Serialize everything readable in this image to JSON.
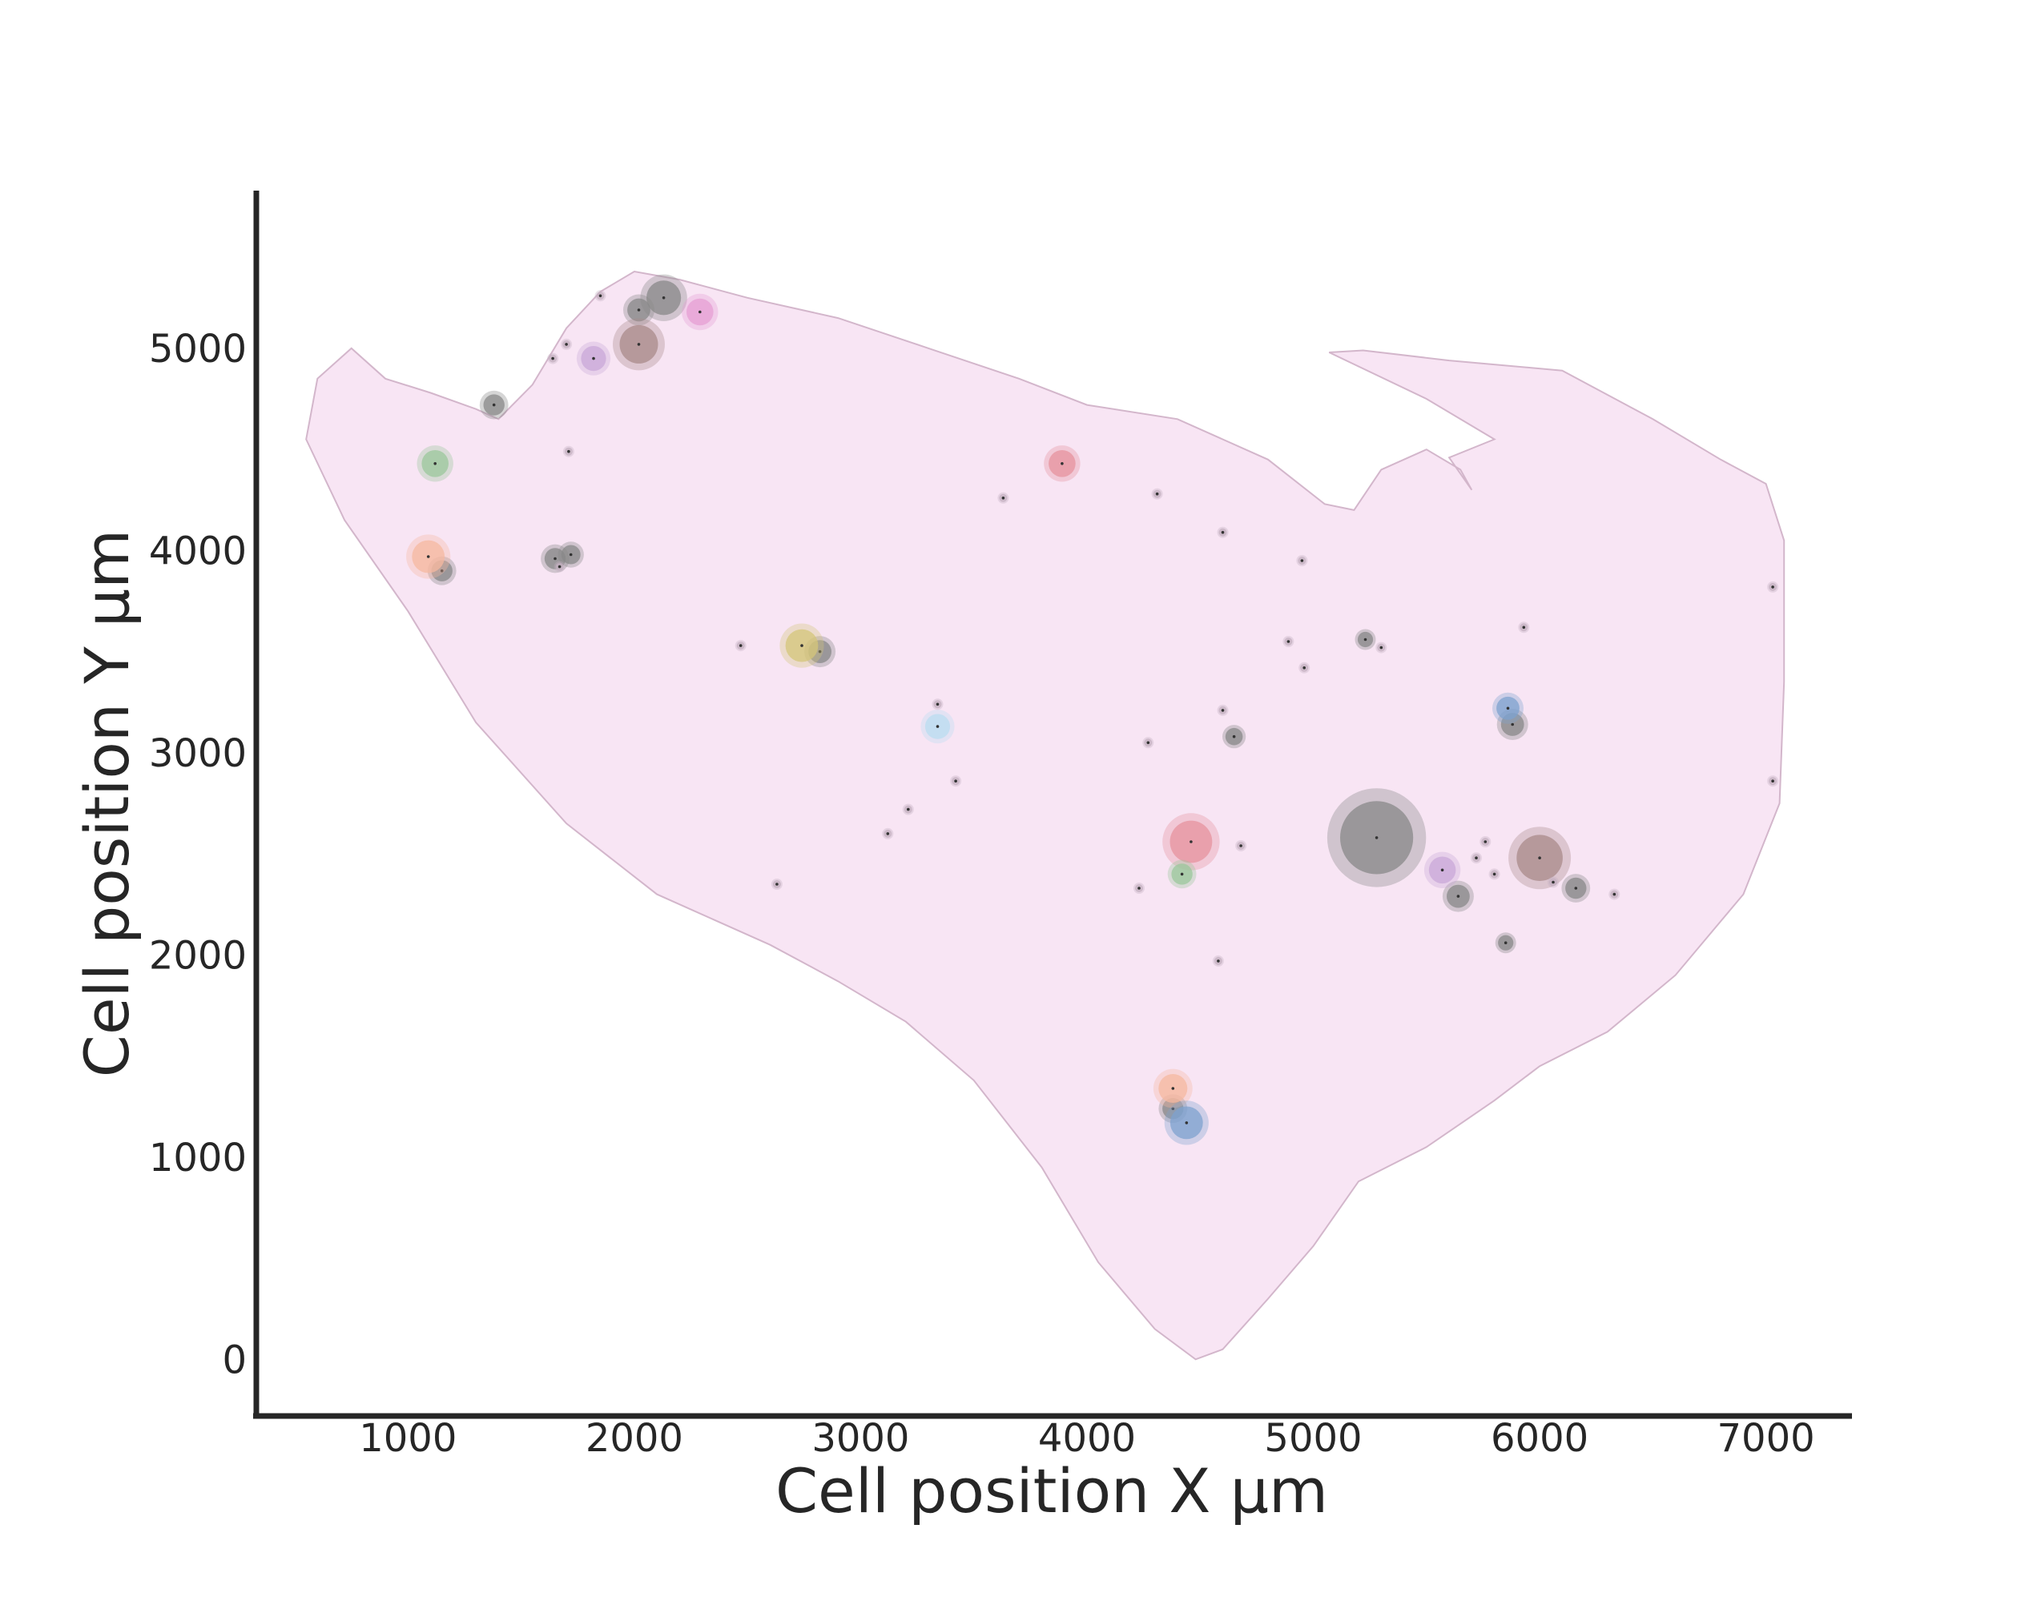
{
  "chart_data": {
    "type": "scatter",
    "title": "",
    "xlabel": "Cell position X µm",
    "ylabel": "Cell position Y µm",
    "xlim": [
      330,
      7380
    ],
    "ylim": [
      -280,
      5780
    ],
    "x_ticks": [
      1000,
      2000,
      3000,
      4000,
      5000,
      6000,
      7000
    ],
    "y_ticks": [
      0,
      1000,
      2000,
      3000,
      4000,
      5000
    ],
    "grid": false,
    "legend": "none",
    "tissue_color": "#f8e5f4",
    "tissue_outline": [
      [
        1400,
        4650
      ],
      [
        1550,
        4820
      ],
      [
        1700,
        5100
      ],
      [
        1850,
        5280
      ],
      [
        2000,
        5380
      ],
      [
        2200,
        5340
      ],
      [
        2500,
        5250
      ],
      [
        2900,
        5150
      ],
      [
        3300,
        5000
      ],
      [
        3700,
        4850
      ],
      [
        4000,
        4720
      ],
      [
        4400,
        4650
      ],
      [
        4800,
        4450
      ],
      [
        5050,
        4230
      ],
      [
        5180,
        4200
      ],
      [
        5300,
        4400
      ],
      [
        5500,
        4500
      ],
      [
        5650,
        4400
      ],
      [
        5700,
        4300
      ],
      [
        5600,
        4460
      ],
      [
        5800,
        4550
      ],
      [
        5500,
        4750
      ],
      [
        5070,
        4980
      ],
      [
        5220,
        4990
      ],
      [
        5600,
        4940
      ],
      [
        6100,
        4890
      ],
      [
        6500,
        4650
      ],
      [
        6800,
        4450
      ],
      [
        7000,
        4330
      ],
      [
        7080,
        4050
      ],
      [
        7080,
        3350
      ],
      [
        7060,
        2750
      ],
      [
        6900,
        2300
      ],
      [
        6600,
        1900
      ],
      [
        6300,
        1620
      ],
      [
        6000,
        1450
      ],
      [
        5800,
        1280
      ],
      [
        5500,
        1050
      ],
      [
        5200,
        880
      ],
      [
        5000,
        560
      ],
      [
        4800,
        300
      ],
      [
        4600,
        50
      ],
      [
        4480,
        0
      ],
      [
        4300,
        150
      ],
      [
        4050,
        480
      ],
      [
        3800,
        950
      ],
      [
        3500,
        1380
      ],
      [
        3200,
        1670
      ],
      [
        2900,
        1870
      ],
      [
        2600,
        2050
      ],
      [
        2100,
        2300
      ],
      [
        1700,
        2650
      ],
      [
        1300,
        3150
      ],
      [
        1000,
        3700
      ],
      [
        720,
        4150
      ],
      [
        550,
        4550
      ],
      [
        600,
        4850
      ],
      [
        750,
        5000
      ],
      [
        900,
        4850
      ],
      [
        1100,
        4780
      ],
      [
        1300,
        4700
      ]
    ],
    "series": [
      {
        "color": "#888888",
        "points": [
          [
            5280,
            2580,
            190
          ],
          [
            2020,
            5190,
            60
          ],
          [
            2130,
            5250,
            90
          ],
          [
            1380,
            4720,
            55
          ],
          [
            1650,
            3960,
            55
          ],
          [
            1720,
            3980,
            50
          ],
          [
            2820,
            3500,
            60
          ],
          [
            4650,
            3080,
            45
          ],
          [
            5230,
            3560,
            40
          ],
          [
            5880,
            3140,
            60
          ],
          [
            5640,
            2290,
            60
          ],
          [
            6160,
            2330,
            55
          ],
          [
            5850,
            2060,
            40
          ],
          [
            4380,
            1240,
            55
          ],
          [
            1150,
            3900,
            55
          ]
        ]
      },
      {
        "color": "#a98a8a",
        "points": [
          [
            2020,
            5020,
            100
          ],
          [
            6000,
            2480,
            120
          ]
        ]
      },
      {
        "color": "#e5939e",
        "points": [
          [
            4460,
            2560,
            110
          ],
          [
            3890,
            4430,
            70
          ]
        ]
      },
      {
        "color": "#e69fd3",
        "points": [
          [
            2290,
            5180,
            70
          ]
        ]
      },
      {
        "color": "#c9a8d8",
        "points": [
          [
            1820,
            4950,
            65
          ],
          [
            5570,
            2420,
            70
          ]
        ]
      },
      {
        "color": "#9bc79b",
        "points": [
          [
            1120,
            4430,
            70
          ],
          [
            4420,
            2400,
            55
          ]
        ]
      },
      {
        "color": "#f5b8a0",
        "points": [
          [
            1090,
            3970,
            85
          ],
          [
            4380,
            1340,
            75
          ]
        ]
      },
      {
        "color": "#d4c57a",
        "points": [
          [
            2740,
            3530,
            85
          ]
        ]
      },
      {
        "color": "#b9dcf0",
        "points": [
          [
            3340,
            3130,
            65
          ]
        ]
      },
      {
        "color": "#7da2cf",
        "points": [
          [
            4440,
            1170,
            85
          ],
          [
            5860,
            3220,
            60
          ]
        ]
      },
      {
        "color": "#c4b0c0",
        "points": [
          [
            1850,
            5260,
            20
          ],
          [
            1710,
            4490,
            20
          ],
          [
            1700,
            5020,
            20
          ],
          [
            2470,
            3530,
            20
          ],
          [
            3630,
            4260,
            20
          ],
          [
            4310,
            4280,
            20
          ],
          [
            4600,
            4090,
            20
          ],
          [
            4950,
            3950,
            20
          ],
          [
            4890,
            3550,
            20
          ],
          [
            4960,
            3420,
            20
          ],
          [
            4600,
            3210,
            20
          ],
          [
            4270,
            3050,
            20
          ],
          [
            3340,
            3240,
            20
          ],
          [
            3420,
            2860,
            20
          ],
          [
            3210,
            2720,
            20
          ],
          [
            3120,
            2600,
            20
          ],
          [
            2630,
            2350,
            20
          ],
          [
            4230,
            2330,
            20
          ],
          [
            4680,
            2540,
            20
          ],
          [
            4580,
            1970,
            20
          ],
          [
            5300,
            3520,
            20
          ],
          [
            5930,
            3620,
            20
          ],
          [
            7030,
            3820,
            20
          ],
          [
            7030,
            2860,
            20
          ],
          [
            6330,
            2300,
            20
          ],
          [
            6060,
            2360,
            20
          ],
          [
            5760,
            2560,
            20
          ],
          [
            5720,
            2480,
            20
          ],
          [
            5800,
            2400,
            20
          ],
          [
            1640,
            4950,
            20
          ],
          [
            1670,
            3920,
            20
          ]
        ]
      }
    ]
  }
}
